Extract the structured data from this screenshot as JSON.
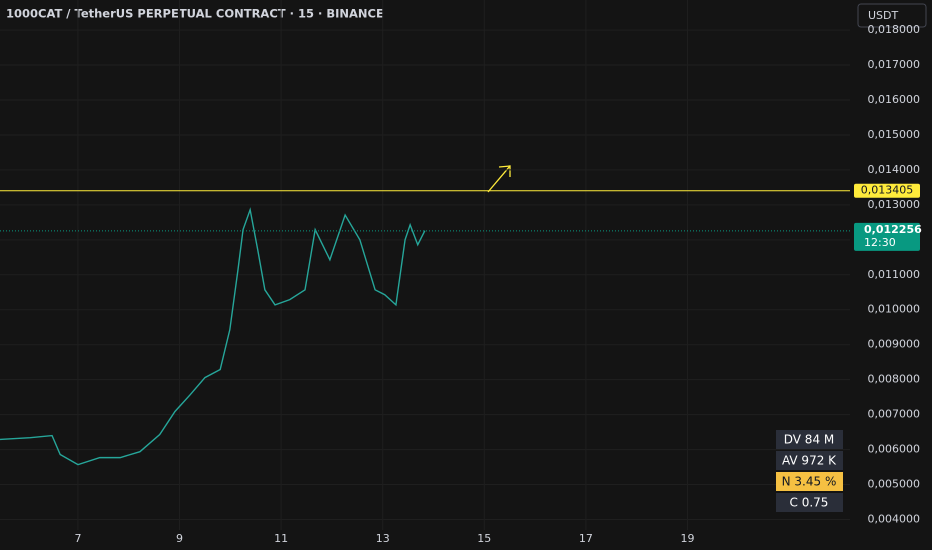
{
  "chart_data": {
    "type": "line",
    "title": "1000CAT / TetherUS PERPETUAL CONTRACT · 15 · BINANCE",
    "currency": "USDT",
    "x": [
      5.465,
      6.06,
      6.49,
      6.65,
      7.0,
      7.43,
      7.83,
      8.22,
      8.61,
      8.91,
      9.21,
      9.5,
      9.8,
      9.99,
      10.15,
      10.25,
      10.39,
      10.54,
      10.68,
      10.88,
      11.17,
      11.47,
      11.67,
      11.96,
      12.26,
      12.55,
      12.85,
      13.04,
      13.26,
      13.44,
      13.54,
      13.69,
      13.83
    ],
    "series": [
      {
        "color": "#26a69a",
        "values": [
          0.00629,
          0.00634,
          0.0064,
          0.00586,
          0.00557,
          0.00577,
          0.00577,
          0.00594,
          0.00643,
          0.00709,
          0.00757,
          0.00806,
          0.00829,
          0.00943,
          0.01114,
          0.01229,
          0.01286,
          0.01171,
          0.01057,
          0.01014,
          0.01029,
          0.01057,
          0.01229,
          0.01143,
          0.01271,
          0.012,
          0.01057,
          0.01043,
          0.01014,
          0.012,
          0.01243,
          0.01186,
          0.01226
        ]
      }
    ],
    "xlim": [
      5.465,
      22.2
    ],
    "xticks": [
      7,
      9,
      11,
      13,
      15,
      17,
      19
    ],
    "ylim": [
      0.0037,
      0.01886
    ],
    "yticks": [
      {
        "value": 0.004,
        "label": "0,004000"
      },
      {
        "value": 0.005,
        "label": "0,005000"
      },
      {
        "value": 0.006,
        "label": "0,006000"
      },
      {
        "value": 0.007,
        "label": "0,007000"
      },
      {
        "value": 0.008,
        "label": "0,008000"
      },
      {
        "value": 0.009,
        "label": "0,009000"
      },
      {
        "value": 0.01,
        "label": "0,010000"
      },
      {
        "value": 0.011,
        "label": "0,011000"
      },
      {
        "value": 0.012,
        "label": "0,012000"
      },
      {
        "value": 0.013,
        "label": "0,013000"
      },
      {
        "value": 0.014,
        "label": "0,014000"
      },
      {
        "value": 0.015,
        "label": "0,015000"
      },
      {
        "value": 0.016,
        "label": "0,016000"
      },
      {
        "value": 0.017,
        "label": "0,017000"
      },
      {
        "value": 0.018,
        "label": "0,018000"
      }
    ],
    "grid": true,
    "hline": {
      "value": 0.013405,
      "label": "0,013405",
      "color": "#ffeb3b"
    },
    "last_price": {
      "value": 0.012256,
      "label": "0,012256",
      "countdown": "12:30",
      "color": "#089981"
    },
    "indicators": [
      "DV 84 M",
      "AV 972 K",
      "N 3.45 %",
      "C  0.75"
    ]
  }
}
